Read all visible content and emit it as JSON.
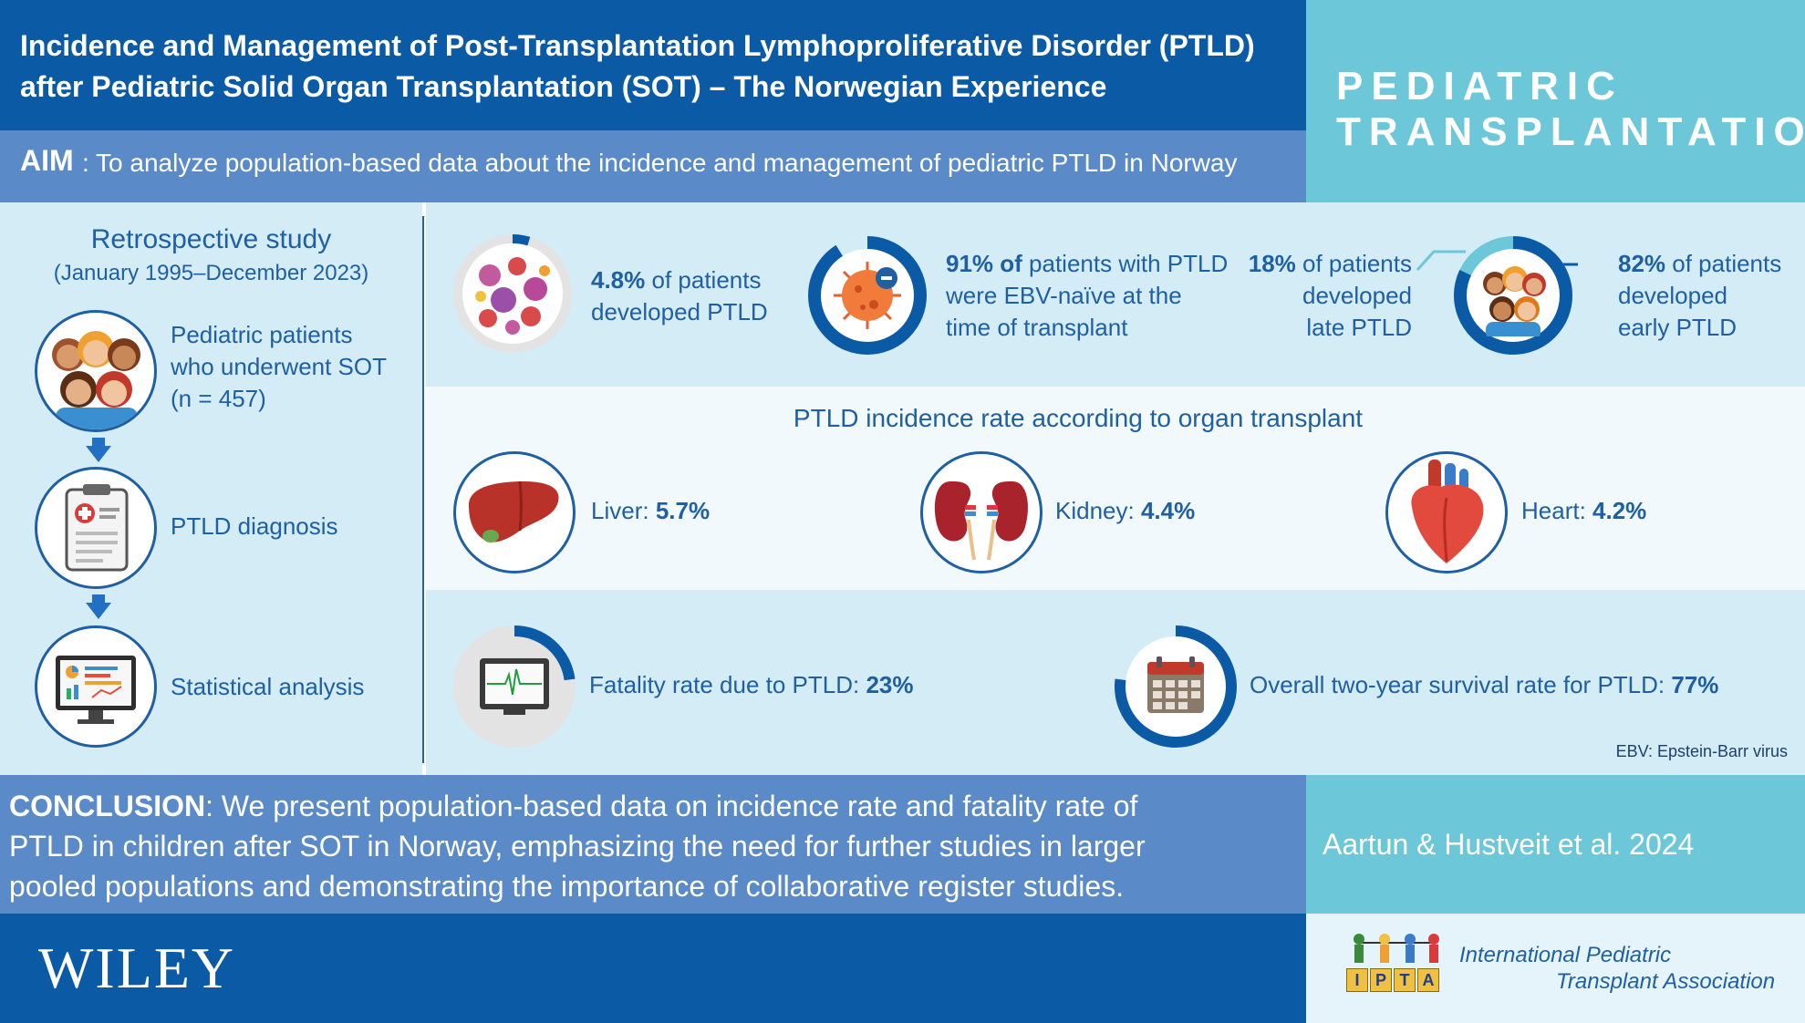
{
  "header": {
    "title_line1": "Incidence and Management of Post-Transplantation Lymphoproliferative Disorder (PTLD)",
    "title_line2": "after Pediatric Solid Organ Transplantation (SOT) – The Norwegian Experience",
    "journal_line1": "PEDIATRIC",
    "journal_line2": "TRANSPLANTATION"
  },
  "aim": {
    "label": "AIM",
    "text": ": To analyze population-based data about the incidence and management of pediatric PTLD in Norway"
  },
  "study": {
    "title": "Retrospective study",
    "dates": "(January 1995–December 2023)",
    "steps": [
      {
        "line1": "Pediatric patients",
        "line2": "who underwent SOT",
        "line3": "(n = 457)"
      },
      {
        "line1": "PTLD diagnosis"
      },
      {
        "line1": "Statistical analysis"
      }
    ]
  },
  "stats": {
    "ptld": {
      "value": "4.8%",
      "text1": " of patients",
      "text2": "developed PTLD",
      "fraction": 0.048
    },
    "ebv": {
      "value": "91% of",
      "text1": " patients with PTLD",
      "text2": "were EBV-naïve at the",
      "text3": "time of transplant",
      "fraction": 0.91
    },
    "late": {
      "value": "18%",
      "text1": " of patients",
      "text2": "developed",
      "text3": "late PTLD",
      "fraction": 0.18
    },
    "early": {
      "value": "82%",
      "text1": " of patients",
      "text2": "developed",
      "text3": "early PTLD",
      "fraction": 0.82
    }
  },
  "organs": {
    "heading": "PTLD incidence rate according to organ transplant",
    "items": [
      {
        "label": "Liver: ",
        "value": "5.7%"
      },
      {
        "label": "Kidney: ",
        "value": "4.4%"
      },
      {
        "label": "Heart: ",
        "value": "4.2%"
      }
    ]
  },
  "outcomes": {
    "fatality": {
      "label": "Fatality rate due to PTLD: ",
      "value": "23%",
      "fraction": 0.23
    },
    "survival": {
      "label": "Overall two-year survival rate for PTLD: ",
      "value": "77%",
      "fraction": 0.77
    },
    "footnote": "EBV: Epstein-Barr virus"
  },
  "conclusion": {
    "label": "CONCLUSION",
    "text_line1": ": We present population-based data on incidence rate and fatality rate of",
    "text_line2": "PTLD in children after SOT in Norway, emphasizing the need for further studies in larger",
    "text_line3": "pooled populations and demonstrating the importance of collaborative register studies."
  },
  "citation": "Aartun & Hustveit et al. 2024",
  "footer": {
    "publisher": "WILEY",
    "ipta_line1": "International Pediatric",
    "ipta_line2": "Transplant Association",
    "ipta_blocks": [
      "I",
      "P",
      "T",
      "A"
    ]
  },
  "colors": {
    "dark_blue": "#0b5aa6",
    "mid_blue": "#5b8ac8",
    "teal": "#6cc7d9",
    "light_panel": "#d3ecf6",
    "text_blue": "#1f5fa3"
  }
}
